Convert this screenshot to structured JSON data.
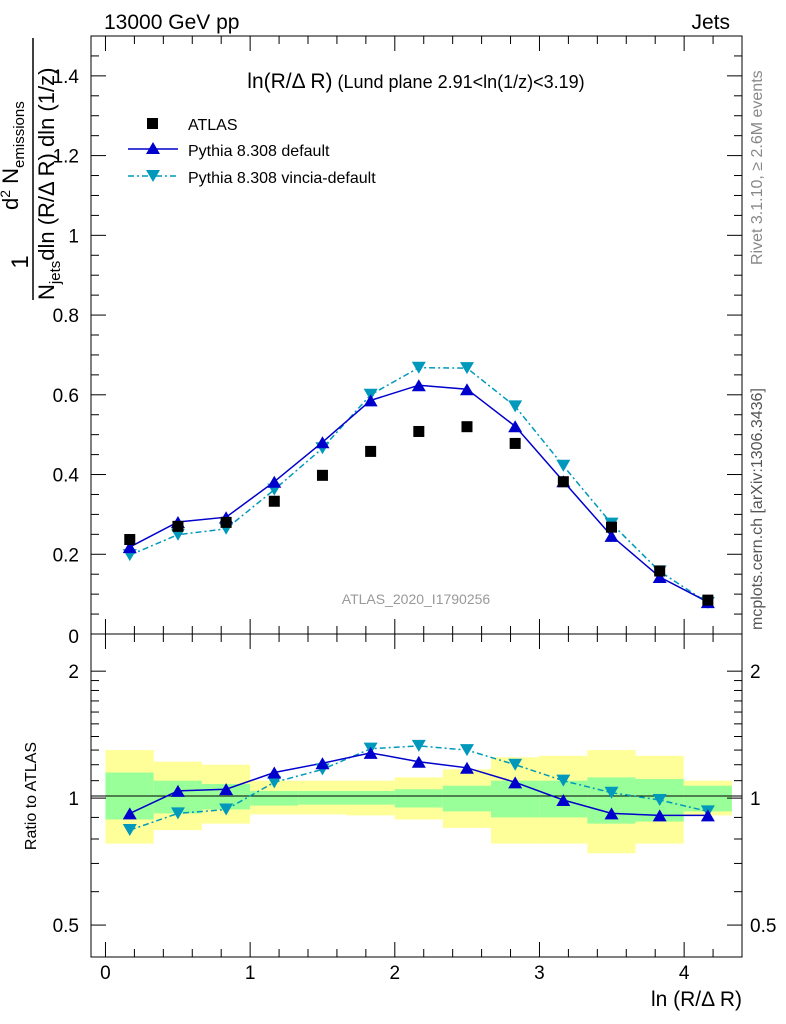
{
  "header": {
    "left": "13000 GeV pp",
    "right": "Jets"
  },
  "side_labels": {
    "rivet": "Rivet 3.1.10, ≥ 2.6M events",
    "mcplots": "mcplots.cern.ch [arXiv:1306.3436]"
  },
  "watermark": "ATLAS_2020_I1790256",
  "colors": {
    "atlas": "#000000",
    "default": "#0000cc",
    "vincia": "#0099bb",
    "band_inner": "#99ff99",
    "band_outer": "#ffff99"
  },
  "chart_data": [
    {
      "type": "scatter",
      "panel": "main",
      "title_main": "ln(R/Δ R)",
      "title_rest": " (Lund plane 2.91<ln(1/z)<3.19)",
      "ylabel": "1/N_jets dln(R/Δ R) dln(1/z) d²N_emissions",
      "ylabel_parts": {
        "num_main": "d",
        "num_sup": "2",
        "num_N": " N",
        "num_sub": "emissions",
        "den_N": "N",
        "den_sub": "jets",
        "den_rest": "dln (R/Δ R) dln (1/z)",
        "one": "1"
      },
      "xlim": [
        -0.1,
        4.4
      ],
      "ylim": [
        0,
        1.5
      ],
      "yticks": [
        0.2,
        0.4,
        0.6,
        0.8,
        1,
        1.2,
        1.4
      ],
      "ytick_labels": [
        "0.2",
        "0.4",
        "0.6",
        "0.8",
        "1",
        "1.2",
        "1.4"
      ],
      "y_partial_label": "0",
      "legend": [
        "ATLAS",
        "Pythia 8.308 default",
        "Pythia 8.308 vincia-default"
      ],
      "x": [
        0.168,
        0.501,
        0.834,
        1.167,
        1.5,
        1.833,
        2.166,
        2.499,
        2.832,
        3.165,
        3.498,
        3.831,
        4.164
      ],
      "series": [
        {
          "name": "ATLAS",
          "marker": "square",
          "values": [
            0.237,
            0.27,
            0.28,
            0.333,
            0.398,
            0.458,
            0.508,
            0.52,
            0.478,
            0.382,
            0.268,
            0.158,
            0.085
          ]
        },
        {
          "name": "Pythia 8.308 default",
          "marker": "triangle-up",
          "values": [
            0.218,
            0.281,
            0.293,
            0.382,
            0.481,
            0.586,
            0.624,
            0.614,
            0.521,
            0.383,
            0.246,
            0.143,
            0.08
          ]
        },
        {
          "name": "Pythia 8.308 vincia-default",
          "marker": "triangle-down",
          "values": [
            0.198,
            0.249,
            0.264,
            0.362,
            0.466,
            0.6,
            0.668,
            0.667,
            0.571,
            0.422,
            0.277,
            0.157,
            0.078
          ]
        }
      ]
    },
    {
      "type": "line",
      "panel": "ratio",
      "ylabel": "Ratio to ATLAS",
      "xlabel": "ln (R/Δ R)",
      "xlim": [
        -0.1,
        4.4
      ],
      "ylim": [
        0.42,
        2.45
      ],
      "log_y": true,
      "xticks": [
        0,
        1,
        2,
        3,
        4
      ],
      "xtick_labels": [
        "0",
        "1",
        "2",
        "3",
        "4"
      ],
      "yticks": [
        0.5,
        1,
        2
      ],
      "ytick_labels": [
        "0.5",
        "1",
        "2"
      ],
      "bin_edges": [
        0.0,
        0.334,
        0.667,
        1.0,
        1.333,
        1.666,
        1.999,
        2.332,
        2.665,
        2.998,
        3.331,
        3.664,
        3.997,
        4.33
      ],
      "band_inner": [
        [
          0.89,
          1.15
        ],
        [
          0.92,
          1.1
        ],
        [
          0.94,
          1.08
        ],
        [
          0.96,
          1.04
        ],
        [
          0.965,
          1.04
        ],
        [
          0.965,
          1.04
        ],
        [
          0.95,
          1.05
        ],
        [
          0.93,
          1.07
        ],
        [
          0.9,
          1.1
        ],
        [
          0.9,
          1.1
        ],
        [
          0.87,
          1.12
        ],
        [
          0.88,
          1.11
        ],
        [
          0.93,
          1.07
        ]
      ],
      "band_outer": [
        [
          0.78,
          1.3
        ],
        [
          0.84,
          1.22
        ],
        [
          0.87,
          1.2
        ],
        [
          0.915,
          1.1
        ],
        [
          0.915,
          1.1
        ],
        [
          0.91,
          1.1
        ],
        [
          0.89,
          1.12
        ],
        [
          0.85,
          1.17
        ],
        [
          0.78,
          1.25
        ],
        [
          0.78,
          1.26
        ],
        [
          0.74,
          1.3
        ],
        [
          0.78,
          1.26
        ],
        [
          0.91,
          1.1
        ]
      ],
      "x": [
        0.168,
        0.501,
        0.834,
        1.167,
        1.5,
        1.833,
        2.166,
        2.499,
        2.832,
        3.165,
        3.498,
        3.831,
        4.164
      ],
      "series": [
        {
          "name": "Pythia 8.308 default",
          "values": [
            0.92,
            1.04,
            1.05,
            1.15,
            1.21,
            1.28,
            1.22,
            1.18,
            1.09,
            0.99,
            0.92,
            0.91,
            0.91
          ]
        },
        {
          "name": "Pythia 8.308 vincia-default",
          "values": [
            0.84,
            0.92,
            0.94,
            1.09,
            1.17,
            1.31,
            1.33,
            1.3,
            1.2,
            1.1,
            1.03,
            0.99,
            0.93
          ]
        }
      ]
    }
  ]
}
